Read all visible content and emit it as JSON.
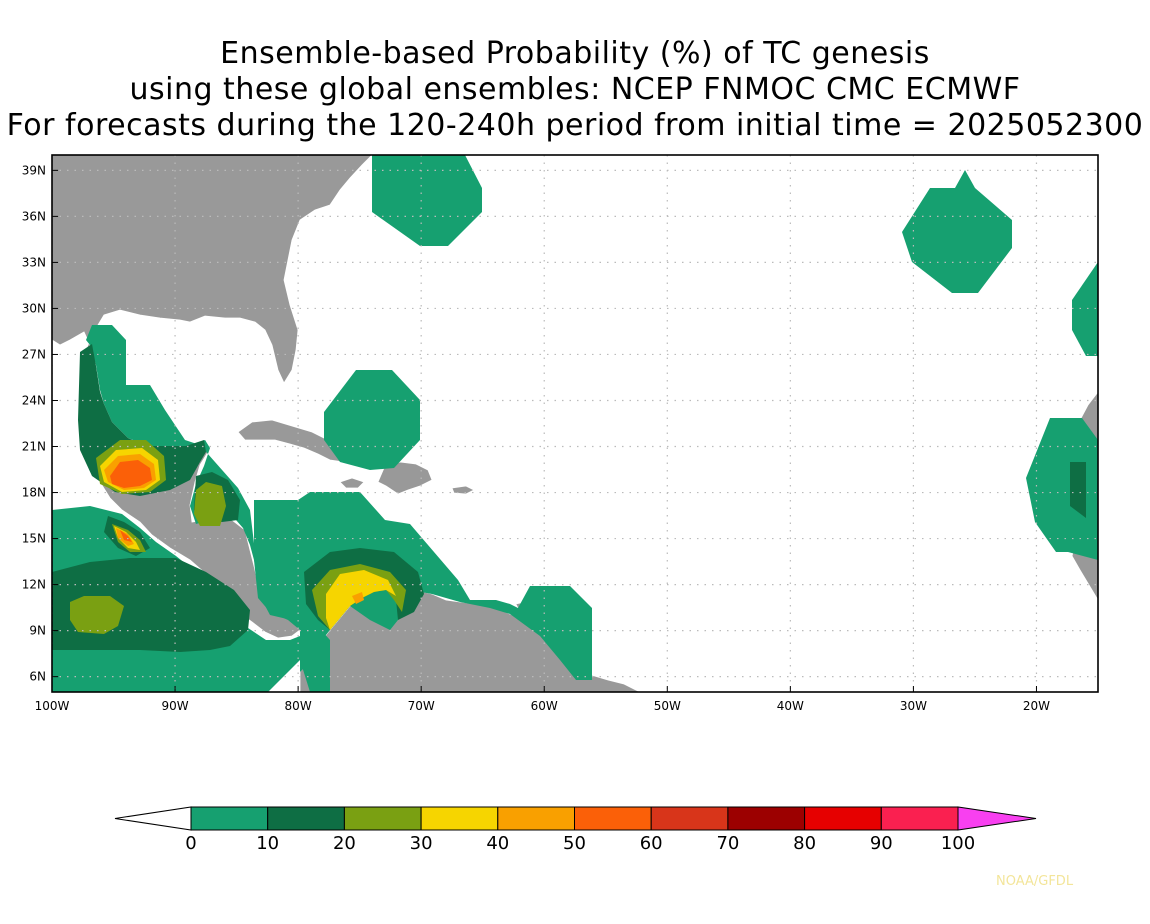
{
  "title": {
    "line1": "Ensemble-based Probability (%) of TC genesis",
    "line2": "using these global ensembles:   NCEP FNMOC CMC ECMWF",
    "line3": "For forecasts during the 120-240h period from initial time = 2025052300"
  },
  "map": {
    "lon_range": [
      -100,
      -15
    ],
    "lat_range": [
      5,
      40
    ],
    "lon_ticks": [
      {
        "value": -100,
        "label": "100W"
      },
      {
        "value": -90,
        "label": "90W"
      },
      {
        "value": -80,
        "label": "80W"
      },
      {
        "value": -70,
        "label": "70W"
      },
      {
        "value": -60,
        "label": "60W"
      },
      {
        "value": -50,
        "label": "50W"
      },
      {
        "value": -40,
        "label": "40W"
      },
      {
        "value": -30,
        "label": "30W"
      },
      {
        "value": -20,
        "label": "20W"
      }
    ],
    "lat_ticks": [
      {
        "value": 39,
        "label": "39N"
      },
      {
        "value": 36,
        "label": "36N"
      },
      {
        "value": 33,
        "label": "33N"
      },
      {
        "value": 30,
        "label": "30N"
      },
      {
        "value": 27,
        "label": "27N"
      },
      {
        "value": 24,
        "label": "24N"
      },
      {
        "value": 21,
        "label": "21N"
      },
      {
        "value": 18,
        "label": "18N"
      },
      {
        "value": 15,
        "label": "15N"
      },
      {
        "value": 12,
        "label": "12N"
      },
      {
        "value": 9,
        "label": "9N"
      },
      {
        "value": 6,
        "label": "6N"
      }
    ],
    "land_color": "#999999",
    "grid_color": "#bbbbbb"
  },
  "colorbar": {
    "levels": [
      "0",
      "10",
      "20",
      "30",
      "40",
      "50",
      "60",
      "70",
      "80",
      "90",
      "100"
    ],
    "colors": [
      "#16a070",
      "#0e6e44",
      "#7aa012",
      "#f6d500",
      "#f9a000",
      "#fb6008",
      "#d8351a",
      "#9c0000",
      "#e60000",
      "#fa2050"
    ],
    "under_color": "#ffffff",
    "over_color": "#f840f0"
  },
  "credit": "NOAA/GFDL"
}
